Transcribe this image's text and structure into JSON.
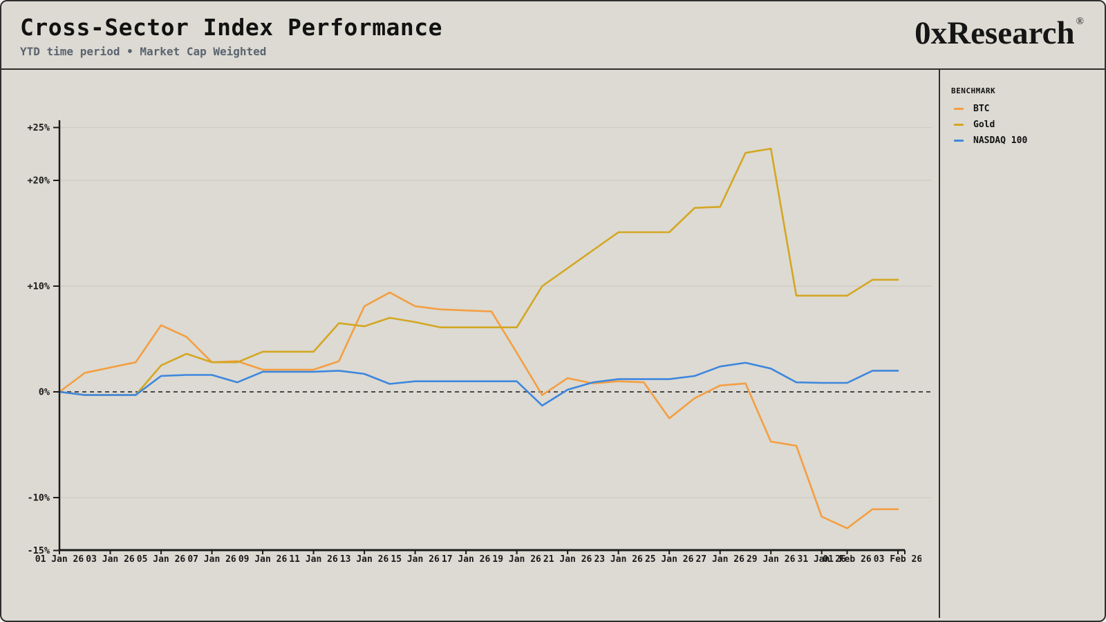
{
  "header": {
    "title": "Cross-Sector Index Performance",
    "subtitle": "YTD time period • Market Cap Weighted",
    "logo": "0xResearch",
    "logo_mark": "®"
  },
  "legend": {
    "title": "BENCHMARK"
  },
  "colors": {
    "background": "#dcdad2",
    "border": "#2e2e2e",
    "subtitle": "#5a6370",
    "grid": "#cecbc3",
    "zero_line": "#474747",
    "axis": "#1a1a1a"
  },
  "chart_data": {
    "type": "line",
    "title": "Cross-Sector Index Performance",
    "xlabel": "",
    "ylabel": "",
    "ylim": [
      -15,
      25
    ],
    "legend_position": "right",
    "grid": true,
    "zero_line_dashed": true,
    "x_range": [
      "01 Jan 26",
      "03 Feb 26"
    ],
    "x": [
      "01 Jan 26",
      "02 Jan 26",
      "03 Jan 26",
      "04 Jan 26",
      "05 Jan 26",
      "06 Jan 26",
      "07 Jan 26",
      "08 Jan 26",
      "09 Jan 26",
      "10 Jan 26",
      "11 Jan 26",
      "12 Jan 26",
      "13 Jan 26",
      "14 Jan 26",
      "15 Jan 26",
      "16 Jan 26",
      "17 Jan 26",
      "18 Jan 26",
      "19 Jan 26",
      "20 Jan 26",
      "21 Jan 26",
      "22 Jan 26",
      "23 Jan 26",
      "24 Jan 26",
      "25 Jan 26",
      "26 Jan 26",
      "27 Jan 26",
      "28 Jan 26",
      "29 Jan 26",
      "30 Jan 26",
      "31 Jan 26",
      "01 Feb 26",
      "02 Feb 26",
      "03 Feb 26"
    ],
    "y_unit": "%",
    "y_ticks": [
      {
        "value": 25,
        "label": "+25%"
      },
      {
        "value": 20,
        "label": "+20%"
      },
      {
        "value": 10,
        "label": "+10%"
      },
      {
        "value": 0,
        "label": "0%"
      },
      {
        "value": -10,
        "label": "-10%"
      },
      {
        "value": -15,
        "label": "-15%"
      }
    ],
    "x_tick_labels": [
      {
        "index": 0,
        "label": "01 Jan 26"
      },
      {
        "index": 2,
        "label": "03 Jan 26"
      },
      {
        "index": 4,
        "label": "05 Jan 26"
      },
      {
        "index": 6,
        "label": "07 Jan 26"
      },
      {
        "index": 8,
        "label": "09 Jan 26"
      },
      {
        "index": 10,
        "label": "11 Jan 26"
      },
      {
        "index": 12,
        "label": "13 Jan 26"
      },
      {
        "index": 14,
        "label": "15 Jan 26"
      },
      {
        "index": 16,
        "label": "17 Jan 26"
      },
      {
        "index": 18,
        "label": "19 Jan 26"
      },
      {
        "index": 20,
        "label": "21 Jan 26"
      },
      {
        "index": 22,
        "label": "23 Jan 26"
      },
      {
        "index": 24,
        "label": "25 Jan 26"
      },
      {
        "index": 26,
        "label": "27 Jan 26"
      },
      {
        "index": 28,
        "label": "29 Jan 26"
      },
      {
        "index": 30,
        "label": "31 Jan 26"
      },
      {
        "index": 31,
        "label": "01 Feb 26"
      },
      {
        "index": 33,
        "label": "03 Feb 26"
      }
    ],
    "series": [
      {
        "name": "BTC",
        "color": "#F49E42",
        "values": [
          0,
          1.8,
          2.3,
          2.8,
          6.3,
          5.2,
          2.8,
          2.9,
          2.1,
          2.1,
          2.1,
          2.9,
          8.1,
          9.4,
          8.1,
          7.8,
          7.7,
          7.6,
          3.7,
          -0.3,
          1.3,
          0.8,
          1.0,
          0.9,
          -2.5,
          -0.6,
          0.6,
          0.8,
          -4.7,
          -5.1,
          -11.8,
          -12.9,
          -11.1,
          -11.1
        ]
      },
      {
        "name": "Gold",
        "color": "#D4A622",
        "values": [
          0,
          -0.3,
          -0.3,
          -0.3,
          2.5,
          3.6,
          2.8,
          2.8,
          3.8,
          3.8,
          3.8,
          6.5,
          6.2,
          7.0,
          6.6,
          6.1,
          6.1,
          6.1,
          6.1,
          10.0,
          11.7,
          13.4,
          15.1,
          15.1,
          15.1,
          17.4,
          17.5,
          22.6,
          23.0,
          9.1,
          9.1,
          9.1,
          10.6,
          10.6
        ]
      },
      {
        "name": "NASDAQ 100",
        "color": "#3E86DE",
        "values": [
          0,
          -0.3,
          -0.3,
          -0.3,
          1.5,
          1.6,
          1.6,
          0.9,
          1.9,
          1.9,
          1.9,
          2.0,
          1.7,
          0.75,
          1.0,
          1.0,
          1.0,
          1.0,
          1.0,
          -1.3,
          0.2,
          0.9,
          1.2,
          1.2,
          1.2,
          1.5,
          2.4,
          2.75,
          2.2,
          0.9,
          0.85,
          0.85,
          2.0,
          2.0
        ]
      }
    ]
  }
}
